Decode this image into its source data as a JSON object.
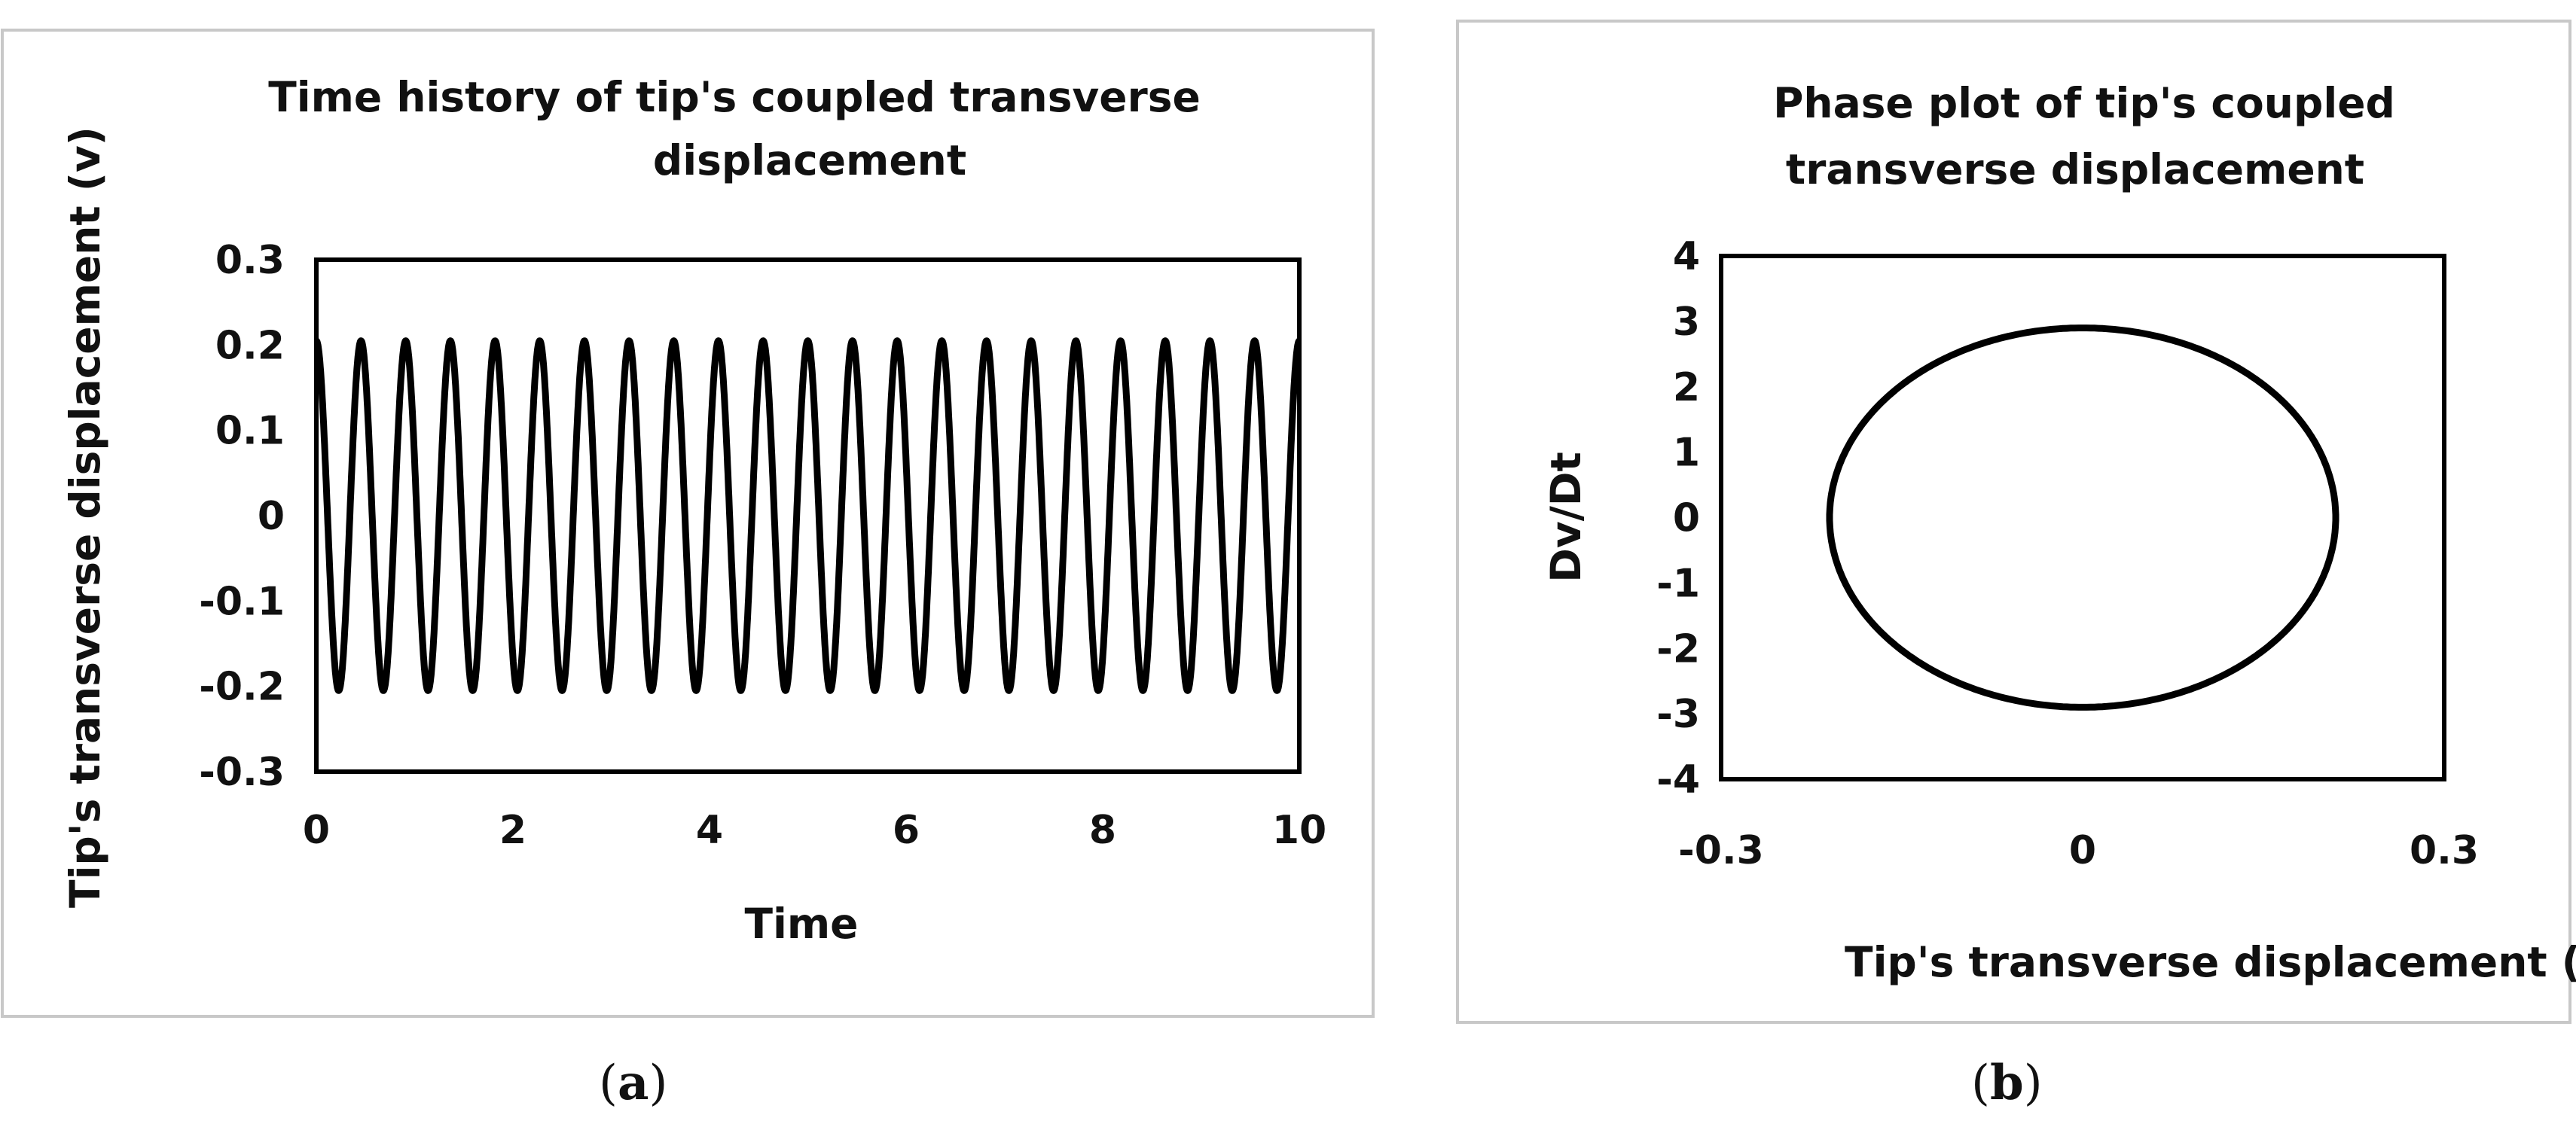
{
  "charts": [
    {
      "caption": {
        "pre": "(",
        "letter": "a",
        "post": ")"
      },
      "chart_data": {
        "type": "line",
        "title": [
          "Time history of tip's coupled transverse",
          "displacement"
        ],
        "xlabel": "Time",
        "ylabel": "Tip's transverse displacement (v)",
        "xlim": [
          0,
          10
        ],
        "ylim": [
          -0.3,
          0.3
        ],
        "xticks": [
          "0",
          "2",
          "4",
          "6",
          "8",
          "10"
        ],
        "yticks": [
          "0.3",
          "0.2",
          "0.1",
          "0",
          "-0.1",
          "-0.2",
          "-0.3"
        ],
        "grid": false,
        "legend": "none",
        "series": [
          {
            "function": "v(t) = A·cos(2π·f·t)",
            "amplitude": 0.205,
            "frequency": 2.2,
            "t_start": 0,
            "t_end": 10,
            "color": "#000000"
          }
        ]
      }
    },
    {
      "caption": {
        "pre": "(",
        "letter": "b",
        "post": ")"
      },
      "chart_data": {
        "type": "line",
        "title": [
          "Phase plot of tip's coupled",
          "transverse displacement"
        ],
        "xlabel": "Tip's transverse displacement (v)",
        "ylabel": "Dv/Dt",
        "xlim": [
          -0.3,
          0.3
        ],
        "ylim": [
          -4,
          4
        ],
        "xticks": [
          "-0.3",
          "0",
          "0.3"
        ],
        "yticks": [
          "4",
          "3",
          "2",
          "1",
          "0",
          "-1",
          "-2",
          "-3",
          "-4"
        ],
        "grid": false,
        "legend": "none",
        "series": [
          {
            "shape": "ellipse",
            "center": [
              0,
              0
            ],
            "x_amplitude": 0.21,
            "y_amplitude": 2.9,
            "color": "#000000"
          }
        ]
      }
    }
  ]
}
